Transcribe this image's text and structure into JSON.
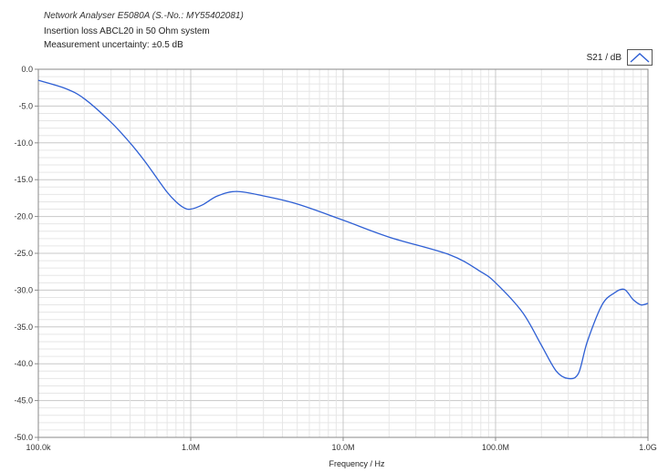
{
  "header": {
    "instrument": "Network Analyser E5080A (S.-No.: MY55402081)",
    "title": "Insertion loss ABCL20 in 50 Ohm system",
    "uncertainty": "Measurement uncertainty: ±0.5 dB"
  },
  "colors": {
    "series": "#2e5fd4",
    "grid_major": "#c8c8c8",
    "grid_minor": "#e6e6e6"
  },
  "chart_data": {
    "type": "line",
    "xscale": "log",
    "xlabel": "Frequency / Hz",
    "ylabel": "",
    "xlim": [
      100000,
      1000000000
    ],
    "ylim": [
      -50,
      0
    ],
    "grid": true,
    "legend_position": "top-right",
    "x_ticks": [
      {
        "value": 100000,
        "label": "100.0k"
      },
      {
        "value": 1000000,
        "label": "1.0M"
      },
      {
        "value": 10000000,
        "label": "10.0M"
      },
      {
        "value": 100000000,
        "label": "100.0M"
      },
      {
        "value": 1000000000,
        "label": "1.0G"
      }
    ],
    "y_ticks": [
      {
        "value": 0,
        "label": "0.0"
      },
      {
        "value": -5,
        "label": "-5.0"
      },
      {
        "value": -10,
        "label": "-10.0"
      },
      {
        "value": -15,
        "label": "-15.0"
      },
      {
        "value": -20,
        "label": "-20.0"
      },
      {
        "value": -25,
        "label": "-25.0"
      },
      {
        "value": -30,
        "label": "-30.0"
      },
      {
        "value": -35,
        "label": "-35.0"
      },
      {
        "value": -40,
        "label": "-40.0"
      },
      {
        "value": -45,
        "label": "-45.0"
      },
      {
        "value": -50,
        "label": "-50.0"
      }
    ],
    "series": [
      {
        "name": "S21 / dB",
        "x": [
          100000,
          150000,
          200000,
          300000,
          400000,
          500000,
          600000,
          700000,
          800000,
          900000,
          1000000,
          1200000,
          1500000,
          2000000,
          3000000,
          5000000,
          10000000,
          20000000,
          50000000,
          80000000,
          100000000,
          150000000,
          200000000,
          250000000,
          300000000,
          350000000,
          400000000,
          500000000,
          600000000,
          700000000,
          800000000,
          900000000,
          1000000000
        ],
        "y": [
          -1.5,
          -2.6,
          -4.0,
          -7.2,
          -10.0,
          -12.5,
          -14.8,
          -16.7,
          -18.0,
          -18.8,
          -19.0,
          -18.4,
          -17.2,
          -16.6,
          -17.2,
          -18.3,
          -20.5,
          -22.8,
          -25.2,
          -27.5,
          -29.0,
          -33.0,
          -37.5,
          -41.0,
          -42.0,
          -41.3,
          -37.0,
          -32.0,
          -30.4,
          -29.9,
          -31.3,
          -32.0,
          -31.8
        ]
      }
    ]
  }
}
